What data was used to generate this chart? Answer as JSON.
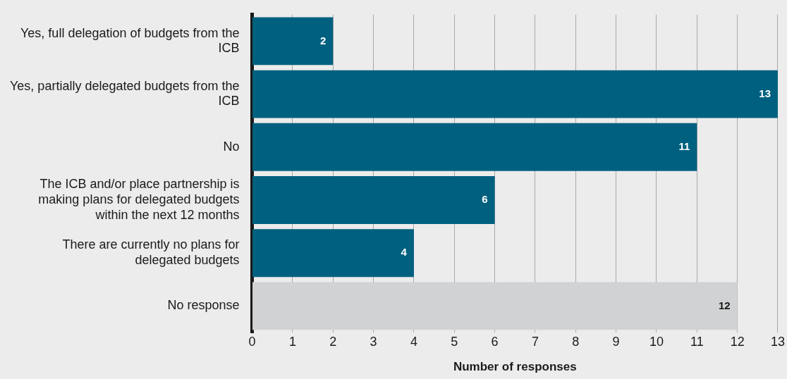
{
  "chart_data": {
    "type": "bar",
    "orientation": "horizontal",
    "xlabel": "Number of responses",
    "categories": [
      "Yes, full delegation of budgets from the ICB",
      "Yes, partially delegated budgets from the ICB",
      "No",
      "The ICB and/or place partnership is making plans for delegated budgets within the next 12 months",
      "There are currently no plans for delegated budgets",
      "No response"
    ],
    "values": [
      2,
      13,
      11,
      6,
      4,
      12
    ],
    "colors": [
      "#00607f",
      "#00607f",
      "#00607f",
      "#00607f",
      "#00607f",
      "#d1d2d3"
    ],
    "xlim": [
      0,
      13
    ],
    "xticks": [
      0,
      1,
      2,
      3,
      4,
      5,
      6,
      7,
      8,
      9,
      10,
      11,
      12,
      13
    ],
    "grid": "x",
    "data_labels": true
  }
}
